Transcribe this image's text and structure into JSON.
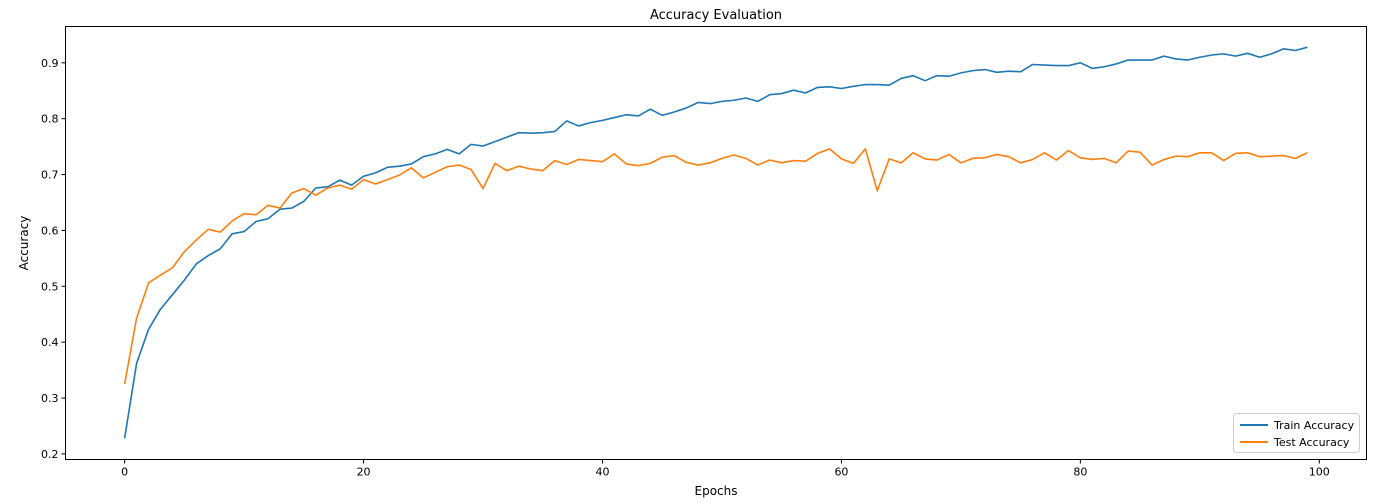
{
  "chart_data": {
    "type": "line",
    "title": "Accuracy Evaluation",
    "xlabel": "Epochs",
    "ylabel": "Accuracy",
    "xlim": [
      -4.95,
      103.95
    ],
    "ylim": [
      0.19,
      0.965
    ],
    "xticks": [
      0,
      20,
      40,
      60,
      80,
      100
    ],
    "yticks": [
      0.2,
      0.3,
      0.4,
      0.5,
      0.6,
      0.7,
      0.8,
      0.9
    ],
    "ytick_labels": [
      "0.2",
      "0.3",
      "0.4",
      "0.5",
      "0.6",
      "0.7",
      "0.8",
      "0.9"
    ],
    "grid": false,
    "legend_position": "lower-right",
    "x": [
      0,
      1,
      2,
      3,
      4,
      5,
      6,
      7,
      8,
      9,
      10,
      11,
      12,
      13,
      14,
      15,
      16,
      17,
      18,
      19,
      20,
      21,
      22,
      23,
      24,
      25,
      26,
      27,
      28,
      29,
      30,
      31,
      32,
      33,
      34,
      35,
      36,
      37,
      38,
      39,
      40,
      41,
      42,
      43,
      44,
      45,
      46,
      47,
      48,
      49,
      50,
      51,
      52,
      53,
      54,
      55,
      56,
      57,
      58,
      59,
      60,
      61,
      62,
      63,
      64,
      65,
      66,
      67,
      68,
      69,
      70,
      71,
      72,
      73,
      74,
      75,
      76,
      77,
      78,
      79,
      80,
      81,
      82,
      83,
      84,
      85,
      86,
      87,
      88,
      89,
      90,
      91,
      92,
      93,
      94,
      95,
      96,
      97,
      98,
      99
    ],
    "series": [
      {
        "name": "Train Accuracy",
        "color": "#1f77b4",
        "values": [
          0.228,
          0.362,
          0.423,
          0.459,
          0.485,
          0.511,
          0.54,
          0.555,
          0.567,
          0.594,
          0.598,
          0.616,
          0.621,
          0.638,
          0.64,
          0.652,
          0.676,
          0.678,
          0.69,
          0.681,
          0.697,
          0.703,
          0.713,
          0.715,
          0.719,
          0.732,
          0.737,
          0.745,
          0.737,
          0.754,
          0.751,
          0.759,
          0.767,
          0.775,
          0.774,
          0.775,
          0.777,
          0.796,
          0.787,
          0.793,
          0.797,
          0.802,
          0.807,
          0.805,
          0.817,
          0.806,
          0.812,
          0.819,
          0.829,
          0.827,
          0.831,
          0.833,
          0.837,
          0.831,
          0.843,
          0.845,
          0.851,
          0.846,
          0.856,
          0.857,
          0.854,
          0.858,
          0.861,
          0.861,
          0.86,
          0.872,
          0.877,
          0.868,
          0.877,
          0.876,
          0.882,
          0.886,
          0.888,
          0.883,
          0.885,
          0.884,
          0.897,
          0.896,
          0.895,
          0.895,
          0.9,
          0.89,
          0.893,
          0.898,
          0.905,
          0.905,
          0.905,
          0.912,
          0.907,
          0.905,
          0.91,
          0.914,
          0.916,
          0.912,
          0.917,
          0.91,
          0.916,
          0.925,
          0.922,
          0.928
        ]
      },
      {
        "name": "Test Accuracy",
        "color": "#ff7f0e",
        "values": [
          0.325,
          0.443,
          0.506,
          0.52,
          0.533,
          0.562,
          0.583,
          0.602,
          0.597,
          0.617,
          0.63,
          0.628,
          0.645,
          0.64,
          0.667,
          0.675,
          0.663,
          0.676,
          0.681,
          0.674,
          0.691,
          0.683,
          0.691,
          0.699,
          0.712,
          0.694,
          0.704,
          0.714,
          0.717,
          0.709,
          0.675,
          0.72,
          0.707,
          0.715,
          0.71,
          0.707,
          0.725,
          0.718,
          0.727,
          0.725,
          0.723,
          0.737,
          0.719,
          0.716,
          0.72,
          0.731,
          0.734,
          0.722,
          0.717,
          0.721,
          0.729,
          0.735,
          0.729,
          0.717,
          0.726,
          0.721,
          0.725,
          0.724,
          0.738,
          0.746,
          0.728,
          0.72,
          0.746,
          0.671,
          0.728,
          0.721,
          0.739,
          0.728,
          0.726,
          0.736,
          0.721,
          0.729,
          0.73,
          0.736,
          0.732,
          0.721,
          0.727,
          0.739,
          0.726,
          0.743,
          0.73,
          0.727,
          0.729,
          0.721,
          0.742,
          0.74,
          0.717,
          0.727,
          0.733,
          0.732,
          0.739,
          0.739,
          0.725,
          0.738,
          0.739,
          0.732,
          0.733,
          0.734,
          0.729,
          0.739
        ]
      }
    ]
  }
}
